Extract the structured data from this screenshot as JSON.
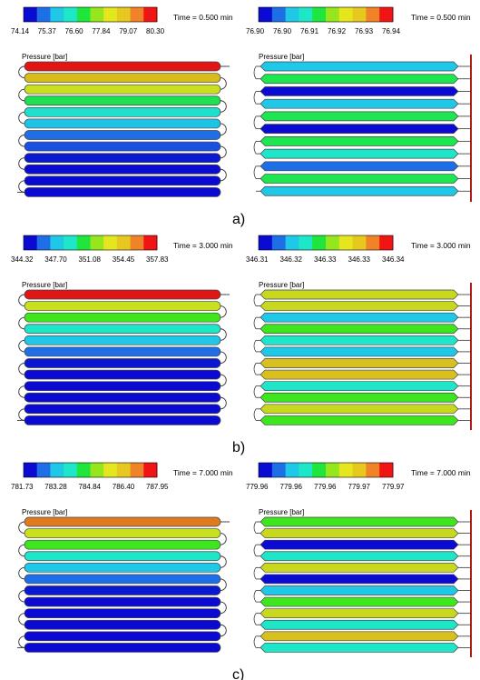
{
  "palette": [
    "#0a0ad2",
    "#1e6ee6",
    "#1ec8e6",
    "#1ee6c8",
    "#1ee63c",
    "#96e61e",
    "#e6e61e",
    "#e6c81e",
    "#f08228",
    "#f01414"
  ],
  "panels": [
    {
      "caption": "a)",
      "left": {
        "time": "Time = 0.500 min",
        "quantity": "Pressure [bar]",
        "ticks": [
          "74.14",
          "75.37",
          "76.60",
          "77.84",
          "79.07",
          "80.30"
        ],
        "tubes": [
          "#e01515",
          "#d8bc1a",
          "#c8e01e",
          "#1ee050",
          "#1ee0cc",
          "#1ec4e6",
          "#1e6ee6",
          "#1a50e0",
          "#0a18d2",
          "#0a0ad2",
          "#0a0ad2",
          "#0a0ad2"
        ]
      },
      "right": {
        "time": "Time = 0.500 min",
        "quantity": "Pressure [bar]",
        "ticks": [
          "76.90",
          "76.90",
          "76.91",
          "76.92",
          "76.93",
          "76.94"
        ],
        "tubes": [
          "#1ec8e6",
          "#1ee650",
          "#0a0ad2",
          "#1ec8e6",
          "#1ee650",
          "#0a0ad2",
          "#1ee650",
          "#1ee6c8",
          "#1e6ee6",
          "#1ee650",
          "#1ec8e6"
        ]
      }
    },
    {
      "caption": "b)",
      "left": {
        "time": "Time = 3.000 min",
        "quantity": "Pressure [bar]",
        "ticks": [
          "344.32",
          "347.70",
          "351.08",
          "354.45",
          "357.83"
        ],
        "tubes": [
          "#e01515",
          "#c8e01e",
          "#3ee61e",
          "#1ee6c8",
          "#1ec8e6",
          "#1e6ee6",
          "#0a18d2",
          "#0a0ad2",
          "#0a0ad2",
          "#0a0ad2",
          "#0a0ad2",
          "#0a0ad2"
        ]
      },
      "right": {
        "time": "Time = 3.000 min",
        "quantity": "Pressure [bar]",
        "ticks": [
          "346.31",
          "346.32",
          "346.33",
          "346.33",
          "346.34"
        ],
        "tubes": [
          "#c8d81e",
          "#c8d81e",
          "#1ec8e6",
          "#3ee61e",
          "#1ee6c8",
          "#1ec8e6",
          "#d8c01e",
          "#d8c01e",
          "#1ee6c8",
          "#3ee61e",
          "#c8d81e",
          "#3ee61e"
        ]
      }
    },
    {
      "caption": "c)",
      "left": {
        "time": "Time = 7.000 min",
        "quantity": "Pressure [bar]",
        "ticks": [
          "781.73",
          "783.28",
          "784.84",
          "786.40",
          "787.95"
        ],
        "tubes": [
          "#e07a1e",
          "#c8e01e",
          "#3ee61e",
          "#1ee6c8",
          "#1ec8e6",
          "#1e6ee6",
          "#0a18d2",
          "#0a0ad2",
          "#0a0ad2",
          "#0a0ad2",
          "#0a0ad2",
          "#0a0ad2"
        ]
      },
      "right": {
        "time": "Time = 7.000 min",
        "quantity": "Pressure [bar]",
        "ticks": [
          "779.96",
          "779.96",
          "779.96",
          "779.97",
          "779.97"
        ],
        "tubes": [
          "#3ee61e",
          "#c8d81e",
          "#0a0ad2",
          "#1ee6c8",
          "#c8d81e",
          "#0a0ad2",
          "#1ec8e6",
          "#3ee61e",
          "#c8d81e",
          "#1ee6c8",
          "#d8c01e",
          "#1ee6c8"
        ]
      }
    }
  ]
}
